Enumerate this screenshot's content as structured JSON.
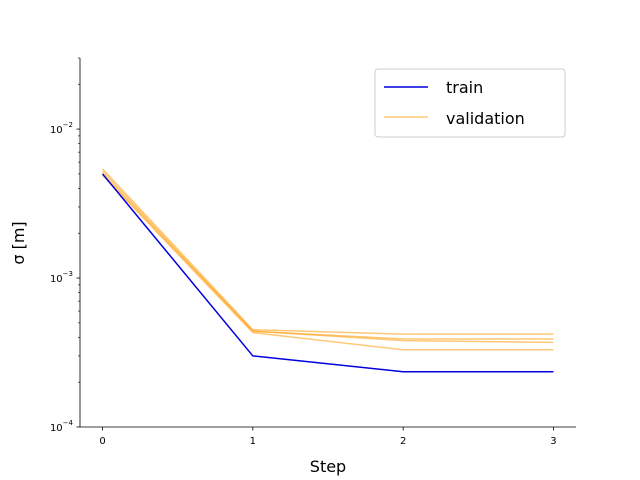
{
  "chart_data": {
    "type": "line",
    "title": "",
    "xlabel": "Step",
    "ylabel": "σ [m]",
    "yscale": "log",
    "xlim": [
      -0.15,
      3.15
    ],
    "ylim": [
      0.0001,
      0.03
    ],
    "grid": false,
    "legend_position": "top-right",
    "x": [
      0,
      1,
      2,
      3
    ],
    "x_tick_labels": [
      "0",
      "1",
      "2",
      "3"
    ],
    "y_ticks": [
      {
        "value": 0.0001,
        "base": "10",
        "exp": "−4"
      },
      {
        "value": 0.001,
        "base": "10",
        "exp": "−3"
      },
      {
        "value": 0.01,
        "base": "10",
        "exp": "−2"
      }
    ],
    "legend": [
      {
        "label": "train",
        "color": "#0000dd",
        "opacity": 1
      },
      {
        "label": "validation",
        "color": "#ffb02e",
        "opacity": 0.65
      }
    ],
    "series": [
      {
        "group": "train",
        "color": "#0000dd",
        "opacity": 1,
        "values": [
          0.005,
          0.0003,
          0.000235,
          0.000235
        ]
      },
      {
        "group": "validation",
        "color": "#ffa41c",
        "opacity": 0.6,
        "values": [
          0.0054,
          0.00045,
          0.00042,
          0.00042
        ]
      },
      {
        "group": "validation",
        "color": "#ffa41c",
        "opacity": 0.6,
        "values": [
          0.0052,
          0.00044,
          0.00039,
          0.00039
        ]
      },
      {
        "group": "validation",
        "color": "#ffa41c",
        "opacity": 0.6,
        "values": [
          0.005,
          0.00044,
          0.00038,
          0.00037
        ]
      },
      {
        "group": "validation",
        "color": "#ffa41c",
        "opacity": 0.6,
        "values": [
          0.0049,
          0.00043,
          0.00033,
          0.00033
        ]
      }
    ]
  }
}
